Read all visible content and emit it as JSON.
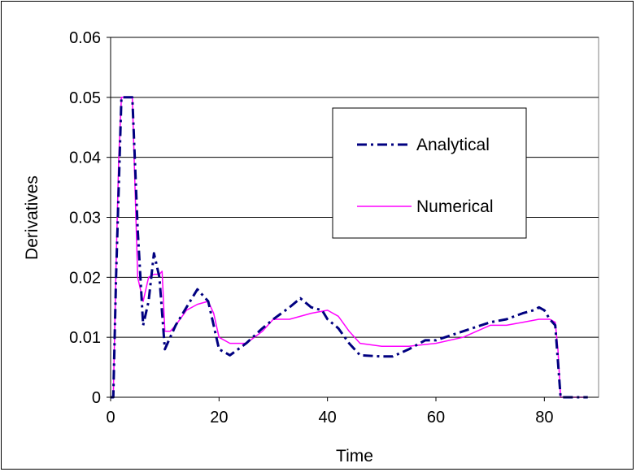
{
  "chart_data": {
    "type": "line",
    "title": "",
    "xlabel": "Time",
    "ylabel": "Derivatives",
    "xlim": [
      0,
      90
    ],
    "ylim": [
      0,
      0.06
    ],
    "x_ticks": [
      "0",
      "20",
      "40",
      "60",
      "80"
    ],
    "y_ticks": [
      "0",
      "0.01",
      "0.02",
      "0.03",
      "0.04",
      "0.05",
      "0.06"
    ],
    "grid": "horizontal",
    "legend_position": "right",
    "series": [
      {
        "name": "Analytical",
        "color": "#000080",
        "style": "dash-dot",
        "points": [
          [
            0,
            0
          ],
          [
            0.5,
            0
          ],
          [
            1,
            0.02
          ],
          [
            1.5,
            0.035
          ],
          [
            2,
            0.05
          ],
          [
            3,
            0.05
          ],
          [
            4,
            0.05
          ],
          [
            5,
            0.028
          ],
          [
            6,
            0.012
          ],
          [
            7,
            0.016
          ],
          [
            8,
            0.024
          ],
          [
            9,
            0.02
          ],
          [
            10,
            0.008
          ],
          [
            11,
            0.01
          ],
          [
            12,
            0.012
          ],
          [
            14,
            0.015
          ],
          [
            16,
            0.018
          ],
          [
            17,
            0.017
          ],
          [
            18,
            0.016
          ],
          [
            19,
            0.012
          ],
          [
            20,
            0.008
          ],
          [
            22,
            0.007
          ],
          [
            25,
            0.009
          ],
          [
            28,
            0.0115
          ],
          [
            30,
            0.013
          ],
          [
            33,
            0.015
          ],
          [
            35,
            0.0165
          ],
          [
            37,
            0.015
          ],
          [
            39,
            0.0145
          ],
          [
            40,
            0.013
          ],
          [
            42,
            0.0115
          ],
          [
            44,
            0.009
          ],
          [
            46,
            0.007
          ],
          [
            50,
            0.0068
          ],
          [
            52,
            0.0068
          ],
          [
            55,
            0.008
          ],
          [
            58,
            0.0095
          ],
          [
            60,
            0.0095
          ],
          [
            65,
            0.011
          ],
          [
            70,
            0.0125
          ],
          [
            73,
            0.013
          ],
          [
            76,
            0.014
          ],
          [
            78,
            0.0145
          ],
          [
            79,
            0.015
          ],
          [
            80,
            0.0145
          ],
          [
            81,
            0.013
          ],
          [
            82,
            0.012
          ],
          [
            82.5,
            0.006
          ],
          [
            83,
            0
          ],
          [
            88,
            0
          ]
        ]
      },
      {
        "name": "Numerical",
        "color": "#ff00ff",
        "style": "solid",
        "points": [
          [
            0,
            0
          ],
          [
            0.5,
            0
          ],
          [
            1,
            0.022
          ],
          [
            1.5,
            0.04
          ],
          [
            2,
            0.05
          ],
          [
            3,
            0.05
          ],
          [
            4,
            0.05
          ],
          [
            5,
            0.02
          ],
          [
            6,
            0.016
          ],
          [
            7,
            0.02
          ],
          [
            8,
            0.0205
          ],
          [
            9,
            0.0205
          ],
          [
            9.5,
            0.021
          ],
          [
            10,
            0.011
          ],
          [
            11,
            0.011
          ],
          [
            12,
            0.012
          ],
          [
            14,
            0.0145
          ],
          [
            16,
            0.0155
          ],
          [
            18,
            0.016
          ],
          [
            19,
            0.014
          ],
          [
            20,
            0.01
          ],
          [
            22,
            0.009
          ],
          [
            25,
            0.009
          ],
          [
            28,
            0.011
          ],
          [
            30,
            0.013
          ],
          [
            33,
            0.013
          ],
          [
            37,
            0.014
          ],
          [
            40,
            0.0145
          ],
          [
            42,
            0.0135
          ],
          [
            44,
            0.011
          ],
          [
            46,
            0.009
          ],
          [
            50,
            0.0085
          ],
          [
            55,
            0.0085
          ],
          [
            60,
            0.009
          ],
          [
            65,
            0.01
          ],
          [
            70,
            0.012
          ],
          [
            73,
            0.012
          ],
          [
            76,
            0.0125
          ],
          [
            79,
            0.013
          ],
          [
            81,
            0.013
          ],
          [
            82,
            0.0125
          ],
          [
            82.5,
            0.008
          ],
          [
            83,
            0
          ],
          [
            88,
            0
          ]
        ]
      }
    ]
  }
}
